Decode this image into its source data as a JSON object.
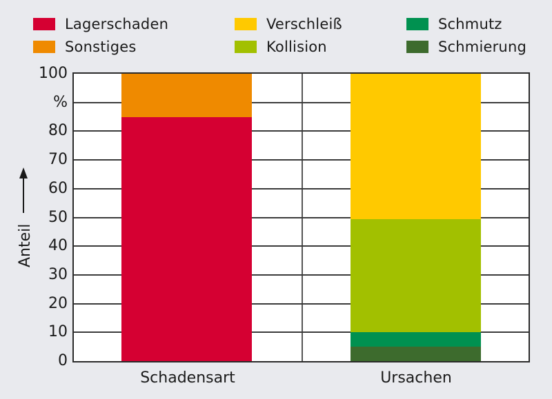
{
  "legend": {
    "items": [
      {
        "label": "Lagerschaden",
        "color": "#d50032"
      },
      {
        "label": "Sonstiges",
        "color": "#ef8a00"
      },
      {
        "label": "Verschleiß",
        "color": "#ffc900"
      },
      {
        "label": "Kollision",
        "color": "#a2c000"
      },
      {
        "label": "Schmutz",
        "color": "#009150"
      },
      {
        "label": "Schmierung",
        "color": "#3d6b2d"
      }
    ]
  },
  "axis": {
    "y_ticks": [
      "100",
      "%",
      "80",
      "70",
      "60",
      "50",
      "40",
      "30",
      "20",
      "10",
      "0"
    ],
    "y_label": "Anteil",
    "x_labels": [
      "Schadensart",
      "Ursachen"
    ]
  },
  "chart_data": {
    "type": "bar",
    "stacked": true,
    "title": "",
    "xlabel": "",
    "ylabel": "Anteil %",
    "ylim": [
      0,
      100
    ],
    "grid": true,
    "legend_position": "top",
    "categories": [
      "Schadensart",
      "Ursachen"
    ],
    "series": [
      {
        "name": "Lagerschaden",
        "color": "#d50032",
        "values": [
          85,
          0
        ]
      },
      {
        "name": "Sonstiges",
        "color": "#ef8a00",
        "values": [
          15,
          0
        ]
      },
      {
        "name": "Schmierung",
        "color": "#3d6b2d",
        "values": [
          0,
          5
        ]
      },
      {
        "name": "Schmutz",
        "color": "#009150",
        "values": [
          0,
          5
        ]
      },
      {
        "name": "Kollision",
        "color": "#a2c000",
        "values": [
          0,
          39.5
        ]
      },
      {
        "name": "Verschleiß",
        "color": "#ffc900",
        "values": [
          0,
          50.5
        ]
      }
    ],
    "stacks": [
      {
        "category": "Schadensart",
        "segments": [
          {
            "name": "Lagerschaden",
            "from": 0,
            "to": 85,
            "color": "#d50032"
          },
          {
            "name": "Sonstiges",
            "from": 85,
            "to": 100,
            "color": "#ef8a00"
          }
        ]
      },
      {
        "category": "Ursachen",
        "segments": [
          {
            "name": "Schmierung",
            "from": 0,
            "to": 5,
            "color": "#3d6b2d"
          },
          {
            "name": "Schmutz",
            "from": 5,
            "to": 10,
            "color": "#009150"
          },
          {
            "name": "Kollision",
            "from": 10,
            "to": 49.5,
            "color": "#a2c000"
          },
          {
            "name": "Verschleiß",
            "from": 49.5,
            "to": 100,
            "color": "#ffc900"
          }
        ]
      }
    ]
  }
}
